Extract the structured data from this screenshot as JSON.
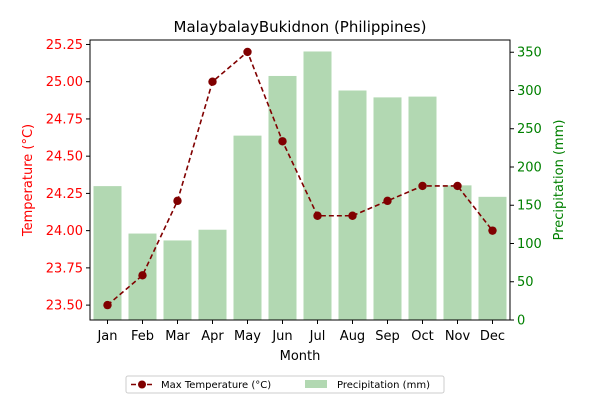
{
  "chart_data": {
    "type": "bar",
    "title": "MalaybalayBukidnon (Philippines)",
    "xlabel": "Month",
    "categories": [
      "Jan",
      "Feb",
      "Mar",
      "Apr",
      "May",
      "Jun",
      "Jul",
      "Aug",
      "Sep",
      "Oct",
      "Nov",
      "Dec"
    ],
    "series": [
      {
        "name": "Max Temperature (°C)",
        "type": "line",
        "axis": "left",
        "color": "#800000",
        "line_style": "dashed",
        "marker": "circle",
        "values": [
          23.5,
          23.7,
          24.2,
          25.0,
          25.2,
          24.6,
          24.1,
          24.1,
          24.2,
          24.3,
          24.3,
          24.0
        ]
      },
      {
        "name": "Precipitation (mm)",
        "type": "bar",
        "axis": "right",
        "color": "#b2d8b2",
        "values": [
          175,
          113,
          104,
          118,
          241,
          319,
          351,
          300,
          291,
          292,
          176,
          161
        ]
      }
    ],
    "y_left": {
      "label": "Temperature (°C)",
      "color": "#ff0000",
      "range": [
        23.4,
        25.28
      ],
      "ticks": [
        "23.50",
        "23.75",
        "24.00",
        "24.25",
        "24.50",
        "24.75",
        "25.00",
        "25.25"
      ]
    },
    "y_right": {
      "label": "Precipitation (mm)",
      "color": "#008000",
      "range": [
        0,
        366
      ],
      "ticks": [
        "0",
        "50",
        "100",
        "150",
        "200",
        "250",
        "300",
        "350"
      ]
    },
    "grid": false,
    "legend_position": "bottom-center"
  }
}
